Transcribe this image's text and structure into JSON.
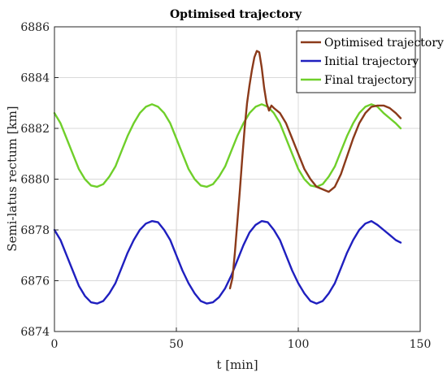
{
  "chart_data": {
    "type": "line",
    "title": "Optimised trajectory",
    "xlabel": "t [min]",
    "ylabel": "Semi-latus rectum [km]",
    "xlim": [
      0,
      150
    ],
    "ylim": [
      6874,
      6886
    ],
    "xticks": [
      "0",
      "50",
      "100",
      "150"
    ],
    "yticks": [
      "6874",
      "6876",
      "6878",
      "6880",
      "6882",
      "6884",
      "6886"
    ],
    "grid": true,
    "legend_position": "top-right",
    "series": [
      {
        "name": "Optimised trajectory",
        "color": "#8b3a1a",
        "x": [
          72,
          73,
          74,
          75,
          76,
          77,
          78,
          79,
          80,
          81,
          82,
          83,
          84,
          85,
          86,
          87,
          88,
          89,
          90,
          92.5,
          95,
          97.5,
          100,
          102.5,
          105,
          107.5,
          110,
          112.5,
          115,
          117.5,
          120,
          122.5,
          125,
          127.5,
          130,
          132.5,
          135,
          137.5,
          140,
          142
        ],
        "y": [
          6875.7,
          6876.1,
          6877.1,
          6878.3,
          6879.5,
          6880.8,
          6882.0,
          6883.0,
          6883.7,
          6884.3,
          6884.8,
          6885.05,
          6885.0,
          6884.4,
          6883.6,
          6883.0,
          6882.7,
          6882.9,
          6882.8,
          6882.6,
          6882.2,
          6881.6,
          6881.0,
          6880.4,
          6880.0,
          6879.7,
          6879.6,
          6879.5,
          6879.7,
          6880.2,
          6880.9,
          6881.6,
          6882.2,
          6882.6,
          6882.85,
          6882.9,
          6882.9,
          6882.8,
          6882.6,
          6882.4
        ]
      },
      {
        "name": "Initial trajectory",
        "color": "#1f1fbf",
        "x": [
          0,
          2.5,
          5,
          7.5,
          10,
          12.5,
          15,
          17.5,
          20,
          22.5,
          25,
          27.5,
          30,
          32.5,
          35,
          37.5,
          40,
          42.5,
          45,
          47.5,
          50,
          52.5,
          55,
          57.5,
          60,
          62.5,
          65,
          67.5,
          70,
          72.5,
          75,
          77.5,
          80,
          82.5,
          85,
          87.5,
          90,
          92.5,
          95,
          97.5,
          100,
          102.5,
          105,
          107.5,
          110,
          112.5,
          115,
          117.5,
          120,
          122.5,
          125,
          127.5,
          130,
          132.5,
          135,
          137.5,
          140,
          142
        ],
        "y": [
          6878.0,
          6877.6,
          6877.0,
          6876.4,
          6875.8,
          6875.4,
          6875.15,
          6875.1,
          6875.2,
          6875.5,
          6875.9,
          6876.5,
          6877.1,
          6877.6,
          6878.0,
          6878.25,
          6878.35,
          6878.3,
          6878.0,
          6877.6,
          6877.0,
          6876.4,
          6875.9,
          6875.5,
          6875.2,
          6875.1,
          6875.15,
          6875.35,
          6875.7,
          6876.2,
          6876.8,
          6877.4,
          6877.9,
          6878.2,
          6878.35,
          6878.3,
          6878.0,
          6877.6,
          6877.0,
          6876.4,
          6875.9,
          6875.5,
          6875.2,
          6875.1,
          6875.2,
          6875.5,
          6875.9,
          6876.5,
          6877.1,
          6877.6,
          6878.0,
          6878.25,
          6878.35,
          6878.2,
          6878.0,
          6877.8,
          6877.6,
          6877.5
        ]
      },
      {
        "name": "Final trajectory",
        "color": "#6fcf2a",
        "x": [
          0,
          2.5,
          5,
          7.5,
          10,
          12.5,
          15,
          17.5,
          20,
          22.5,
          25,
          27.5,
          30,
          32.5,
          35,
          37.5,
          40,
          42.5,
          45,
          47.5,
          50,
          52.5,
          55,
          57.5,
          60,
          62.5,
          65,
          67.5,
          70,
          72.5,
          75,
          77.5,
          80,
          82.5,
          85,
          87.5,
          90,
          92.5,
          95,
          97.5,
          100,
          102.5,
          105,
          107.5,
          110,
          112.5,
          115,
          117.5,
          120,
          122.5,
          125,
          127.5,
          130,
          132.5,
          135,
          137.5,
          140,
          142
        ],
        "y": [
          6882.6,
          6882.2,
          6881.6,
          6881.0,
          6880.4,
          6880.0,
          6879.75,
          6879.7,
          6879.8,
          6880.1,
          6880.5,
          6881.1,
          6881.7,
          6882.2,
          6882.6,
          6882.85,
          6882.95,
          6882.85,
          6882.6,
          6882.2,
          6881.6,
          6881.0,
          6880.4,
          6880.0,
          6879.75,
          6879.7,
          6879.8,
          6880.1,
          6880.5,
          6881.1,
          6881.7,
          6882.2,
          6882.6,
          6882.85,
          6882.95,
          6882.85,
          6882.6,
          6882.2,
          6881.6,
          6881.0,
          6880.4,
          6880.0,
          6879.75,
          6879.7,
          6879.8,
          6880.1,
          6880.5,
          6881.1,
          6881.7,
          6882.2,
          6882.6,
          6882.85,
          6882.95,
          6882.85,
          6882.6,
          6882.4,
          6882.2,
          6882.0
        ]
      }
    ]
  }
}
